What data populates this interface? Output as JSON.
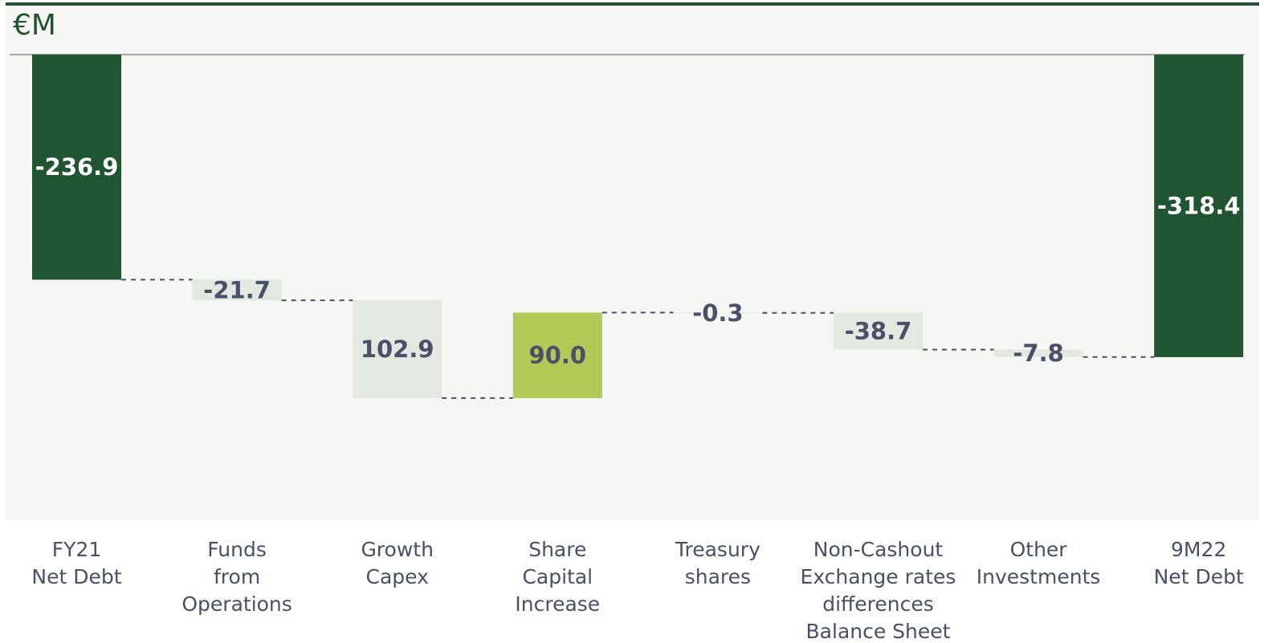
{
  "chart_data": {
    "type": "waterfall",
    "title": "€M",
    "categories": [
      "FY21\nNet Debt",
      "Funds\nfrom\nOperations",
      "Growth\nCapex",
      "Share\nCapital\nIncrease",
      "Treasury\nshares",
      "Non-Cashout\nExchange rates\ndifferences\nBalance Sheet",
      "Other\nInvestments",
      "9M22\nNet Debt"
    ],
    "values": [
      -236.9,
      -21.7,
      102.9,
      90.0,
      -0.3,
      -38.7,
      -7.8,
      -318.4
    ],
    "value_labels": [
      "-236.9",
      "-21.7",
      "102.9",
      "90.0",
      "-0.3",
      "-38.7",
      "-7.8",
      "-318.4"
    ],
    "kinds": [
      "total",
      "increase",
      "increase",
      "decrease",
      "increase",
      "increase",
      "increase",
      "total"
    ],
    "colors": {
      "total": "#1f5631",
      "increase": "#e3e8e1",
      "decrease": "#b1c955"
    },
    "ylim": [
      -490,
      0
    ]
  }
}
